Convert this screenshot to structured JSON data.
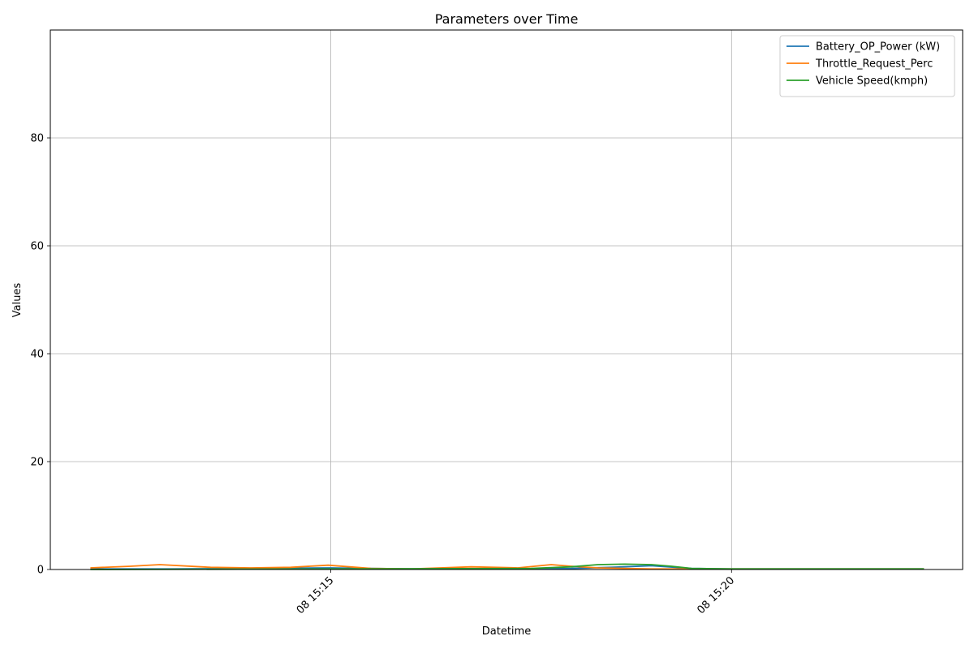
{
  "chart_data": {
    "type": "line",
    "title": "Parameters over Time",
    "xlabel": "Datetime",
    "ylabel": "Values",
    "x_axis": {
      "type": "datetime",
      "range": [
        "2024-01-08 15:11:30",
        "2024-01-08 15:22:53"
      ],
      "ticks": [
        {
          "value": "2024-01-08 15:15:00",
          "label": "08 15:15"
        },
        {
          "value": "2024-01-08 15:20:00",
          "label": "08 15:20"
        }
      ]
    },
    "y_axis": {
      "range": [
        0,
        100
      ],
      "ticks": [
        0,
        20,
        40,
        60,
        80
      ]
    },
    "grid": true,
    "legend_position": "top-right",
    "series": [
      {
        "name": "Battery_OP_Power (kW)",
        "color": "#1f77b4",
        "x": [
          "2024-01-08 15:12:00",
          "2024-01-08 15:13:00",
          "2024-01-08 15:14:00",
          "2024-01-08 15:14:30",
          "2024-01-08 15:15:00",
          "2024-01-08 15:16:00",
          "2024-01-08 15:17:00",
          "2024-01-08 15:18:00",
          "2024-01-08 15:18:30",
          "2024-01-08 15:19:00",
          "2024-01-08 15:19:30",
          "2024-01-08 15:20:00",
          "2024-01-08 15:21:00",
          "2024-01-08 15:22:24"
        ],
        "y": [
          0.1,
          0.1,
          0.2,
          0.25,
          0.3,
          0.1,
          0.1,
          0.2,
          0.4,
          0.7,
          0.2,
          0.1,
          0.1,
          0.1
        ]
      },
      {
        "name": "Throttle_Request_Perc",
        "color": "#ff7f0e",
        "x": [
          "2024-01-08 15:12:00",
          "2024-01-08 15:12:30",
          "2024-01-08 15:12:52",
          "2024-01-08 15:13:30",
          "2024-01-08 15:14:00",
          "2024-01-08 15:14:30",
          "2024-01-08 15:14:58",
          "2024-01-08 15:15:30",
          "2024-01-08 15:16:00",
          "2024-01-08 15:16:45",
          "2024-01-08 15:17:20",
          "2024-01-08 15:17:45",
          "2024-01-08 15:18:00",
          "2024-01-08 15:18:20",
          "2024-01-08 15:19:00",
          "2024-01-08 15:20:00",
          "2024-01-08 15:22:24"
        ],
        "y": [
          0.3,
          0.6,
          0.9,
          0.4,
          0.3,
          0.4,
          0.8,
          0.2,
          0.1,
          0.5,
          0.3,
          0.9,
          0.6,
          0.3,
          0.1,
          0.1,
          0.1
        ]
      },
      {
        "name": "Vehicle Speed(kmph)",
        "color": "#2ca02c",
        "x": [
          "2024-01-08 15:12:00",
          "2024-01-08 15:15:00",
          "2024-01-08 15:17:30",
          "2024-01-08 15:18:00",
          "2024-01-08 15:18:20",
          "2024-01-08 15:18:40",
          "2024-01-08 15:19:00",
          "2024-01-08 15:19:15",
          "2024-01-08 15:19:30",
          "2024-01-08 15:20:00",
          "2024-01-08 15:22:24"
        ],
        "y": [
          0.0,
          0.1,
          0.2,
          0.5,
          0.9,
          1.0,
          0.9,
          0.6,
          0.2,
          0.1,
          0.1
        ]
      }
    ]
  }
}
